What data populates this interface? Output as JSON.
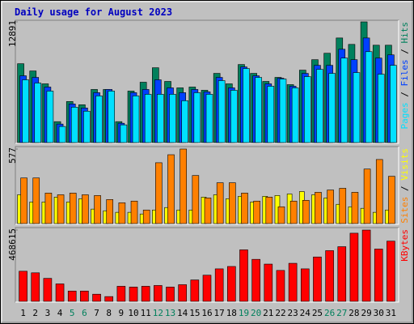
{
  "chart_data": [
    {
      "type": "bar",
      "title": "Daily usage for August 2023",
      "legend_separator": " / ",
      "ylim": [
        0,
        12891
      ],
      "yticks": [
        12891
      ],
      "series": [
        {
          "name": "Hits",
          "color": "#00805c",
          "values": [
            8422,
            7649,
            6274,
            2234,
            4383,
            4039,
            5672,
            5672,
            2234,
            5500,
            6446,
            7992,
            6531,
            5844,
            5930,
            5586,
            7391,
            6274,
            8336,
            7391,
            6531,
            6961,
            6188,
            7735,
            8852,
            9539,
            11172,
            10485,
            12891,
            10399,
            10399
          ]
        },
        {
          "name": "Files",
          "color": "#0040ff",
          "values": [
            7133,
            6961,
            5930,
            1977,
            4125,
            3695,
            5328,
            5672,
            2063,
            5328,
            5672,
            6703,
            5844,
            5328,
            5672,
            5414,
            6961,
            5844,
            8078,
            7133,
            6274,
            6875,
            6016,
            7391,
            8250,
            8250,
            9969,
            8852,
            11172,
            9024,
            9367
          ]
        },
        {
          "name": "Pages",
          "color": "#00e0ff",
          "values": [
            6703,
            6360,
            5500,
            1719,
            3781,
            3352,
            4984,
            5500,
            1891,
            4984,
            5156,
            5156,
            5156,
            4469,
            5328,
            5156,
            6617,
            5586,
            7907,
            6961,
            6016,
            6789,
            5844,
            7047,
            7821,
            7391,
            9024,
            7477,
            9711,
            7305,
            8250
          ]
        }
      ]
    },
    {
      "type": "bar",
      "legend_separator": " / ",
      "ylim": [
        0,
        577
      ],
      "yticks": [
        577
      ],
      "series": [
        {
          "name": "Visits",
          "color": "#ffff00",
          "values": [
            223,
            167,
            167,
            205,
            167,
            192,
            112,
            99,
            87,
            87,
            74,
            105,
            124,
            105,
            105,
            205,
            223,
            192,
            211,
            167,
            211,
            217,
            229,
            248,
            223,
            198,
            149,
            130,
            118,
            87,
            105
          ]
        },
        {
          "name": "Sites",
          "color": "#ff8000",
          "values": [
            353,
            353,
            236,
            223,
            236,
            223,
            217,
            186,
            161,
            174,
            105,
            471,
            533,
            577,
            372,
            198,
            316,
            316,
            236,
            174,
            205,
            130,
            174,
            180,
            242,
            260,
            273,
            242,
            422,
            496,
            366
          ]
        }
      ]
    },
    {
      "type": "bar",
      "ylim": [
        0,
        468615
      ],
      "yticks": [
        468615
      ],
      "categories": [
        "1",
        "2",
        "3",
        "4",
        "5",
        "6",
        "7",
        "8",
        "9",
        "10",
        "11",
        "12",
        "13",
        "14",
        "15",
        "16",
        "17",
        "18",
        "19",
        "20",
        "21",
        "22",
        "23",
        "24",
        "25",
        "26",
        "27",
        "28",
        "29",
        "30",
        "31"
      ],
      "category_colors": [
        "#000000",
        "#000000",
        "#000000",
        "#000000",
        "#00805c",
        "#00805c",
        "#000000",
        "#000000",
        "#000000",
        "#000000",
        "#000000",
        "#00805c",
        "#00805c",
        "#000000",
        "#000000",
        "#000000",
        "#000000",
        "#000000",
        "#00805c",
        "#00805c",
        "#000000",
        "#000000",
        "#000000",
        "#000000",
        "#000000",
        "#00805c",
        "#00805c",
        "#000000",
        "#000000",
        "#000000",
        "#000000"
      ],
      "series": [
        {
          "name": "KBytes",
          "color": "#ff0000",
          "values": [
            197866,
            187452,
            151003,
            114554,
            67691,
            67691,
            46863,
            31242,
            98933,
            93726,
            98933,
            104140,
            93726,
            109347,
            140589,
            171831,
            213487,
            229108,
            338455,
            275971,
            244729,
            203073,
            249936,
            213487,
            291592,
            333248,
            359283,
            447802,
            468615,
            343662,
            395732
          ]
        }
      ]
    }
  ]
}
